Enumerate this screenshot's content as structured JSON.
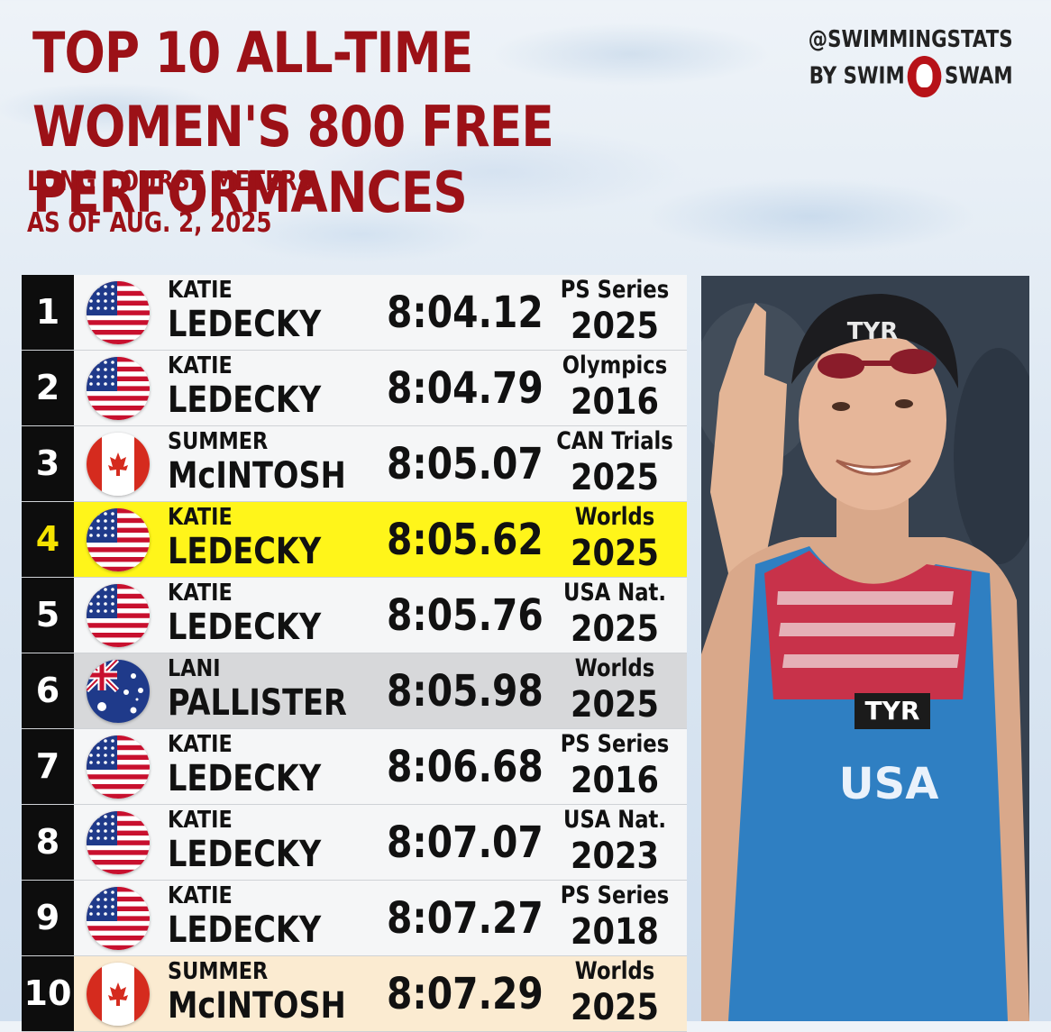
{
  "header": {
    "title_line1": "TOP 10 ALL-TIME",
    "title_line2": "WOMEN'S 800 FREE PERFORMANCES",
    "subtitle_course": "LONG COURSE METERS",
    "subtitle_date": "AS OF AUG. 2, 2025"
  },
  "brand": {
    "handle": "@SWIMMINGSTATS",
    "by_text": "BY SWIM",
    "swam_text": "SWAM",
    "logo_color": "#b71218"
  },
  "colors": {
    "title_red": "#9c1117",
    "highlight_yellow": "#fff51a",
    "highlight_gray": "#d7d8da",
    "highlight_cream": "#fbebd1"
  },
  "rows": [
    {
      "rank": "1",
      "flag": "usa-flag-icon",
      "first": "KATIE",
      "last": "LEDECKY",
      "time": "8:04.12",
      "meet": "PS Series",
      "year": "2025",
      "style": ""
    },
    {
      "rank": "2",
      "flag": "usa-flag-icon",
      "first": "KATIE",
      "last": "LEDECKY",
      "time": "8:04.79",
      "meet": "Olympics",
      "year": "2016",
      "style": ""
    },
    {
      "rank": "3",
      "flag": "canada-flag-icon",
      "first": "SUMMER",
      "last": "McINTOSH",
      "time": "8:05.07",
      "meet": "CAN Trials",
      "year": "2025",
      "style": ""
    },
    {
      "rank": "4",
      "flag": "usa-flag-icon",
      "first": "KATIE",
      "last": "LEDECKY",
      "time": "8:05.62",
      "meet": "Worlds",
      "year": "2025",
      "style": "yellow"
    },
    {
      "rank": "5",
      "flag": "usa-flag-icon",
      "first": "KATIE",
      "last": "LEDECKY",
      "time": "8:05.76",
      "meet": "USA Nat.",
      "year": "2025",
      "style": ""
    },
    {
      "rank": "6",
      "flag": "australia-flag-icon",
      "first": "LANI",
      "last": "PALLISTER",
      "time": "8:05.98",
      "meet": "Worlds",
      "year": "2025",
      "style": "gray"
    },
    {
      "rank": "7",
      "flag": "usa-flag-icon",
      "first": "KATIE",
      "last": "LEDECKY",
      "time": "8:06.68",
      "meet": "PS Series",
      "year": "2016",
      "style": ""
    },
    {
      "rank": "8",
      "flag": "usa-flag-icon",
      "first": "KATIE",
      "last": "LEDECKY",
      "time": "8:07.07",
      "meet": "USA Nat.",
      "year": "2023",
      "style": ""
    },
    {
      "rank": "9",
      "flag": "usa-flag-icon",
      "first": "KATIE",
      "last": "LEDECKY",
      "time": "8:07.27",
      "meet": "PS Series",
      "year": "2018",
      "style": ""
    },
    {
      "rank": "10",
      "flag": "canada-flag-icon",
      "first": "SUMMER",
      "last": "McINTOSH",
      "time": "8:07.29",
      "meet": "Worlds",
      "year": "2025",
      "style": "cream"
    }
  ],
  "photo": {
    "cap_text": "TYR",
    "suit_brand": "TYR",
    "suit_text": "USA"
  }
}
